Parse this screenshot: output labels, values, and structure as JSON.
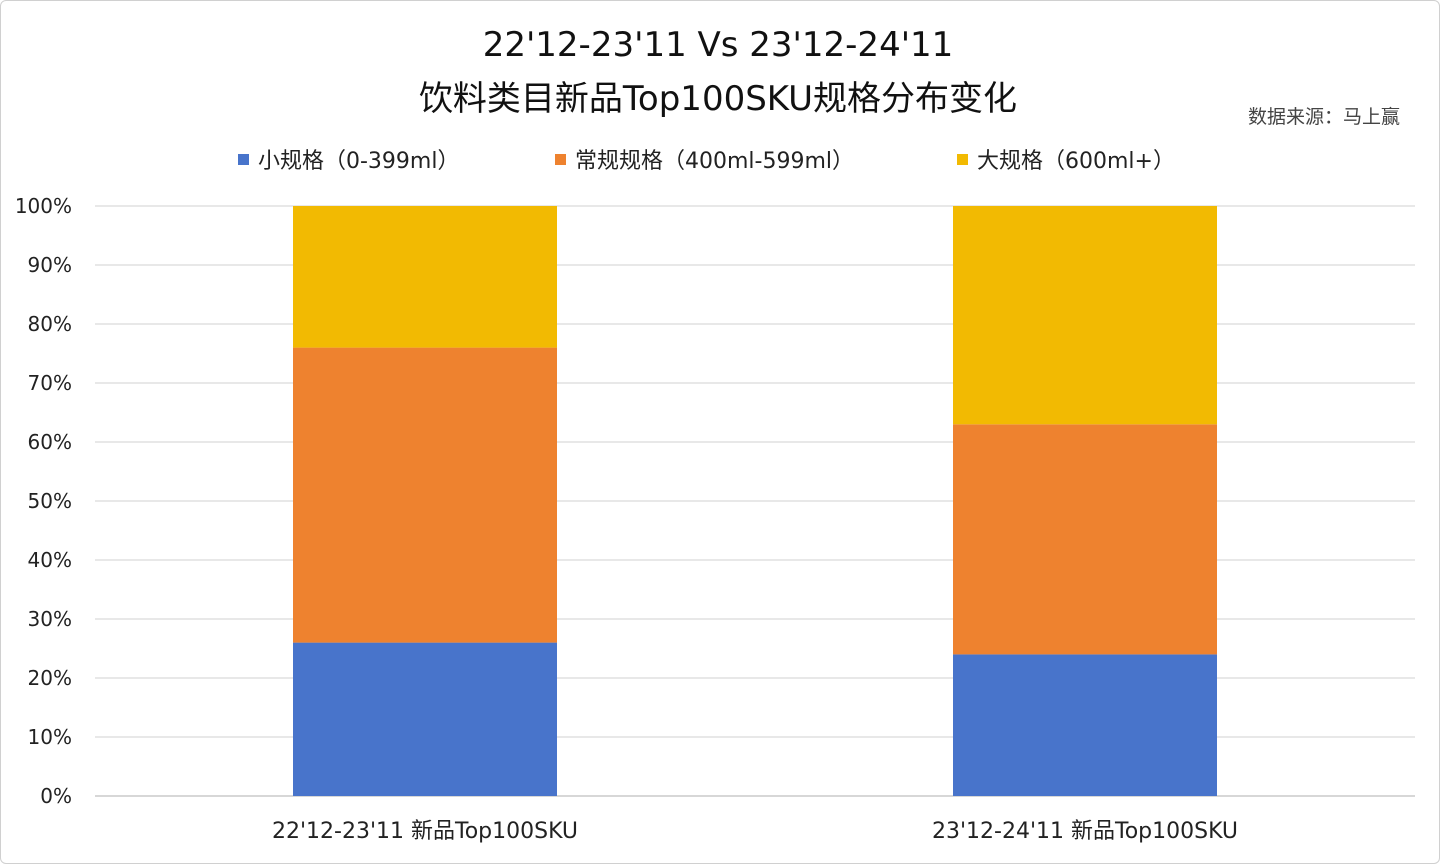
{
  "chart_data": {
    "type": "bar",
    "stacked": true,
    "title": "22'12-23'11 Vs 23'12-24'11",
    "subtitle": "饮料类目新品Top100SKU规格分布变化",
    "source": "数据来源：马上赢",
    "categories": [
      "22'12-23'11 新品Top100SKU",
      "23'12-24'11 新品Top100SKU"
    ],
    "series": [
      {
        "name": "小规格（0-399ml）",
        "color": "#4874CB",
        "values": [
          26,
          24
        ]
      },
      {
        "name": "常规规格（400ml-599ml）",
        "color": "#EE822F",
        "values": [
          50,
          39
        ]
      },
      {
        "name": "大规格（600ml+）",
        "color": "#F2BA02",
        "values": [
          24,
          37
        ]
      }
    ],
    "ylim": [
      0,
      100
    ],
    "yticks": [
      "0%",
      "10%",
      "20%",
      "30%",
      "40%",
      "50%",
      "60%",
      "70%",
      "80%",
      "90%",
      "100%"
    ],
    "grid": true,
    "legend_position": "top",
    "xlabel": "",
    "ylabel": ""
  }
}
